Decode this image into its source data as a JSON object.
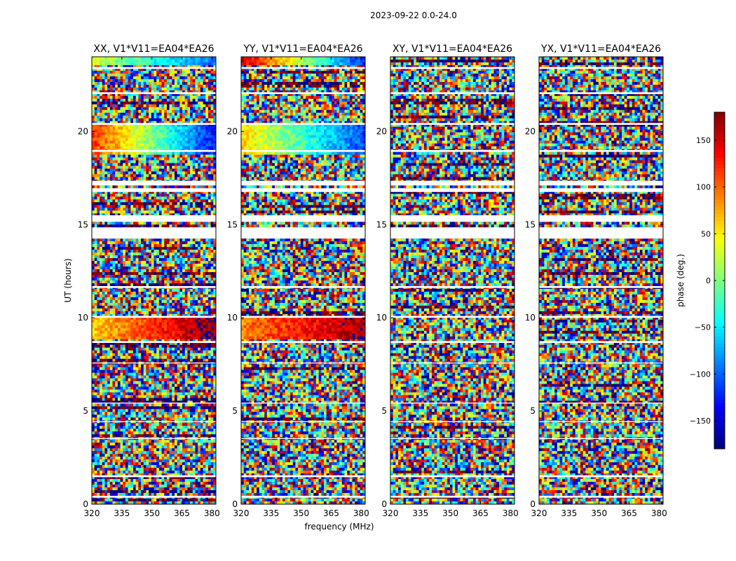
{
  "figure": {
    "suptitle": "2023-09-22 0.0-24.0"
  },
  "chart_data": {
    "type": "heatmap",
    "panels": [
      {
        "title": "XX, V1*V11=EA04*EA26",
        "ylabel": "UT (hours)",
        "xlabel": "",
        "structured_bands": [
          {
            "y_from": 23.6,
            "y_to": 24.0,
            "phase_left": 30,
            "phase_right": -100
          },
          {
            "y_from": 18.8,
            "y_to": 20.4,
            "phase_left": 120,
            "phase_right": -130
          },
          {
            "y_from": 8.9,
            "y_to": 10.0,
            "phase_left": 60,
            "phase_right": 180
          }
        ]
      },
      {
        "title": "YY, V1*V11=EA04*EA26",
        "ylabel": "",
        "xlabel": "frequency (MHz)",
        "structured_bands": [
          {
            "y_from": 23.6,
            "y_to": 24.0,
            "phase_left": 150,
            "phase_right": -120
          },
          {
            "y_from": 18.8,
            "y_to": 20.4,
            "phase_left": 60,
            "phase_right": -110
          },
          {
            "y_from": 8.9,
            "y_to": 10.0,
            "phase_left": 90,
            "phase_right": 170
          }
        ]
      },
      {
        "title": "XY, V1*V11=EA04*EA26",
        "ylabel": "",
        "xlabel": "",
        "structured_bands": []
      },
      {
        "title": "YX, V1*V11=EA04*EA26",
        "ylabel": "",
        "xlabel": "",
        "structured_bands": []
      }
    ],
    "x_axis": {
      "range_mhz": [
        320,
        382
      ],
      "ticks": [
        320,
        335,
        350,
        365,
        380
      ]
    },
    "y_axis": {
      "range_hours": [
        0,
        24
      ],
      "ticks": [
        0,
        5,
        10,
        15,
        20
      ]
    },
    "flagged_ut_ranges": [
      [
        14.25,
        14.85
      ],
      [
        15.15,
        15.5
      ],
      [
        16.75,
        16.95
      ],
      [
        17.1,
        17.35
      ],
      [
        18.9,
        19.0
      ],
      [
        20.35,
        20.45
      ],
      [
        22.0,
        22.1
      ],
      [
        23.35,
        23.45
      ],
      [
        10.0,
        10.1
      ],
      [
        11.6,
        11.7
      ],
      [
        8.65,
        8.75
      ],
      [
        7.55,
        7.6
      ],
      [
        5.4,
        5.45
      ],
      [
        4.4,
        4.45
      ],
      [
        3.5,
        3.55
      ],
      [
        1.45,
        1.55
      ],
      [
        0.35,
        0.45
      ]
    ],
    "colorbar": {
      "label": "phase (deg.)",
      "range": [
        -180,
        180
      ],
      "ticks": [
        -150,
        -100,
        -50,
        0,
        50,
        100,
        150
      ],
      "colormap": "jet"
    },
    "grid": false,
    "legend": "none"
  }
}
